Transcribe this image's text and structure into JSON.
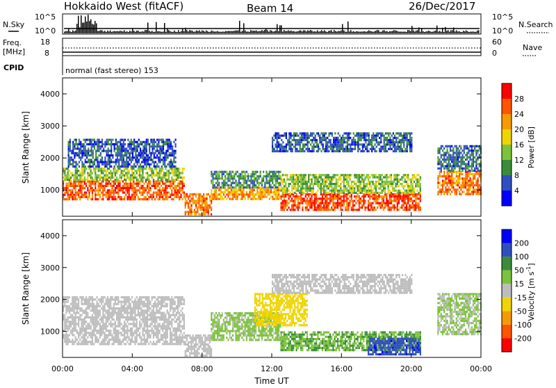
{
  "header": {
    "station": "Hokkaido West (fitACF)",
    "beam": "Beam 14",
    "date": "26/Dec/2017"
  },
  "top_panels": {
    "nsky_label": "N.Sky",
    "nsky_ticks": [
      "10^5",
      "10^0"
    ],
    "nsearch_label": "N.Search",
    "nsearch_ticks": [
      "10^5",
      "10^0"
    ],
    "freq_label_1": "Freq.",
    "freq_label_2": "[MHz]",
    "freq_ticks": [
      "18",
      "8"
    ],
    "nave_label": "Nave",
    "nave_ticks": [
      "60",
      "0"
    ],
    "cpid_label": "CPID",
    "cpid_text": "normal (fast stereo) 153"
  },
  "colors": {
    "power_scale": [
      "#0000ff",
      "#2f4fbf",
      "#3a8c3a",
      "#7cc23c",
      "#f0d400",
      "#f59a00",
      "#ff5500",
      "#ff0000"
    ],
    "velocity_scale": [
      "#ff0000",
      "#ff5500",
      "#f59a00",
      "#f0d400",
      "#bdbdbd",
      "#7cc23c",
      "#3a8c3a",
      "#2f4fbf",
      "#0000ff"
    ],
    "gray_flag": "#bdbdbd"
  },
  "chart_data": [
    {
      "type": "heatmap",
      "name": "power",
      "ylabel": "Slant Range [km]",
      "xlabel": "Time UT",
      "x_ticks": [
        "00:00",
        "04:00",
        "08:00",
        "12:00",
        "16:00",
        "20:00",
        "00:00"
      ],
      "y_ticks": [
        "1000",
        "2000",
        "3000",
        "4000"
      ],
      "x_range_hours": [
        0,
        24
      ],
      "y_range_km": [
        180,
        4500
      ],
      "colorbar_label": "Power [dB]",
      "colorbar_ticks": [
        "28",
        "24",
        "20",
        "16",
        "12",
        "8",
        "4"
      ],
      "colorbar_range": [
        0,
        32
      ],
      "echo_regions": [
        {
          "t": [
            0.0,
            7.0
          ],
          "km": [
            700,
            1300
          ],
          "value": 26
        },
        {
          "t": [
            0.0,
            7.0
          ],
          "km": [
            1300,
            1700
          ],
          "value": 14
        },
        {
          "t": [
            0.3,
            6.5
          ],
          "km": [
            1700,
            2600
          ],
          "value": 6
        },
        {
          "t": [
            7.0,
            8.5
          ],
          "km": [
            250,
            900
          ],
          "value": 24
        },
        {
          "t": [
            8.5,
            12.5
          ],
          "km": [
            700,
            1100
          ],
          "value": 22
        },
        {
          "t": [
            8.5,
            12.5
          ],
          "km": [
            1100,
            1600
          ],
          "value": 10
        },
        {
          "t": [
            12.5,
            20.5
          ],
          "km": [
            400,
            900
          ],
          "value": 27
        },
        {
          "t": [
            12.5,
            20.5
          ],
          "km": [
            900,
            1500
          ],
          "value": 14
        },
        {
          "t": [
            12.0,
            20.0
          ],
          "km": [
            2200,
            2800
          ],
          "value": 7
        },
        {
          "t": [
            21.5,
            24.0
          ],
          "km": [
            900,
            1600
          ],
          "value": 24
        },
        {
          "t": [
            21.5,
            24.0
          ],
          "km": [
            1600,
            2400
          ],
          "value": 8
        }
      ]
    },
    {
      "type": "heatmap",
      "name": "velocity",
      "ylabel": "Slant Range [km]",
      "xlabel": "Time UT",
      "x_ticks": [
        "00:00",
        "04:00",
        "08:00",
        "12:00",
        "16:00",
        "20:00",
        "00:00"
      ],
      "y_ticks": [
        "1000",
        "2000",
        "3000",
        "4000"
      ],
      "x_range_hours": [
        0,
        24
      ],
      "y_range_km": [
        180,
        4500
      ],
      "colorbar_label": "Velocity [m s^-1]",
      "colorbar_ticks": [
        "200",
        "100",
        "50",
        "15",
        "-15",
        "-50",
        "-100",
        "-200"
      ],
      "colorbar_range": [
        -250,
        250
      ],
      "echo_regions": [
        {
          "t": [
            0.0,
            7.0
          ],
          "km": [
            600,
            2100
          ],
          "value": 0
        },
        {
          "t": [
            7.0,
            8.5
          ],
          "km": [
            250,
            900
          ],
          "value": 0
        },
        {
          "t": [
            8.5,
            12.5
          ],
          "km": [
            700,
            1600
          ],
          "value": 40
        },
        {
          "t": [
            11.0,
            14.0
          ],
          "km": [
            1200,
            2200
          ],
          "value": -60
        },
        {
          "t": [
            12.5,
            20.5
          ],
          "km": [
            400,
            1000
          ],
          "value": 80
        },
        {
          "t": [
            17.5,
            20.5
          ],
          "km": [
            250,
            800
          ],
          "value": 180
        },
        {
          "t": [
            12.0,
            20.0
          ],
          "km": [
            2200,
            2800
          ],
          "value": 0
        },
        {
          "t": [
            21.5,
            24.0
          ],
          "km": [
            900,
            2200
          ],
          "value": 30
        }
      ]
    }
  ]
}
